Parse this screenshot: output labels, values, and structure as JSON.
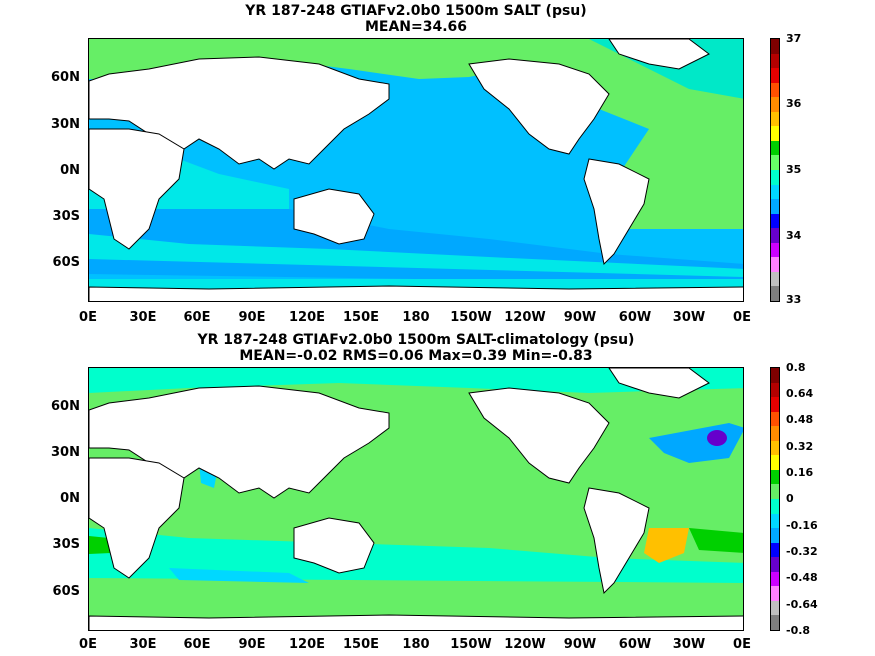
{
  "panels": [
    {
      "title_line1": "YR 187-248 GTIAFv2.0b0 1500m SALT (psu)",
      "title_line2": "MEAN=34.66",
      "colorbar": {
        "labels": [
          "37",
          "36",
          "35",
          "34",
          "33"
        ],
        "colors": [
          "#7f0000",
          "#b40000",
          "#e60000",
          "#ff5000",
          "#ff8c00",
          "#ffc000",
          "#ffff00",
          "#00d000",
          "#66ff66",
          "#00ffcc",
          "#00d8ff",
          "#00a8ff",
          "#0000ff",
          "#6600cc",
          "#cc00ff",
          "#ff80ff",
          "#bfbfbf",
          "#7f7f7f"
        ]
      },
      "fields": {
        "ocean_base": "#00c0ff",
        "atlantic": "#66ee66",
        "indian": "#00e8e8",
        "southern": "#00e8e8",
        "mediterranean": "#b40000",
        "land": "#ffffff"
      }
    },
    {
      "title_line1": "YR 187-248 GTIAFv2.0b0 1500m SALT-climatology (psu)",
      "title_line2": "MEAN=-0.02   RMS=0.06   Max=0.39   Min=-0.83",
      "colorbar": {
        "labels": [
          "0.8",
          "0.64",
          "0.48",
          "0.32",
          "0.16",
          "0",
          "-0.16",
          "-0.32",
          "-0.48",
          "-0.64",
          "-0.8"
        ],
        "colors": [
          "#7f0000",
          "#b40000",
          "#e60000",
          "#ff5000",
          "#ff8c00",
          "#ffc000",
          "#ffff00",
          "#00d000",
          "#66ee66",
          "#00ffcc",
          "#00d8ff",
          "#00a8ff",
          "#0000ff",
          "#6600cc",
          "#cc00ff",
          "#ff80ff",
          "#bfbfbf",
          "#7f7f7f"
        ]
      },
      "fields": {
        "ocean_base": "#66ee66",
        "positive_anomaly": "#ffc000",
        "negative_anomaly": "#00d8ff",
        "strong_negative": "#6600cc",
        "land": "#ffffff"
      }
    }
  ],
  "axes": {
    "x_ticks": [
      "0E",
      "30E",
      "60E",
      "90E",
      "120E",
      "150E",
      "180",
      "150W",
      "120W",
      "90W",
      "60W",
      "30W",
      "0E"
    ],
    "y_ticks": [
      "60N",
      "30N",
      "0N",
      "30S",
      "60S"
    ]
  }
}
